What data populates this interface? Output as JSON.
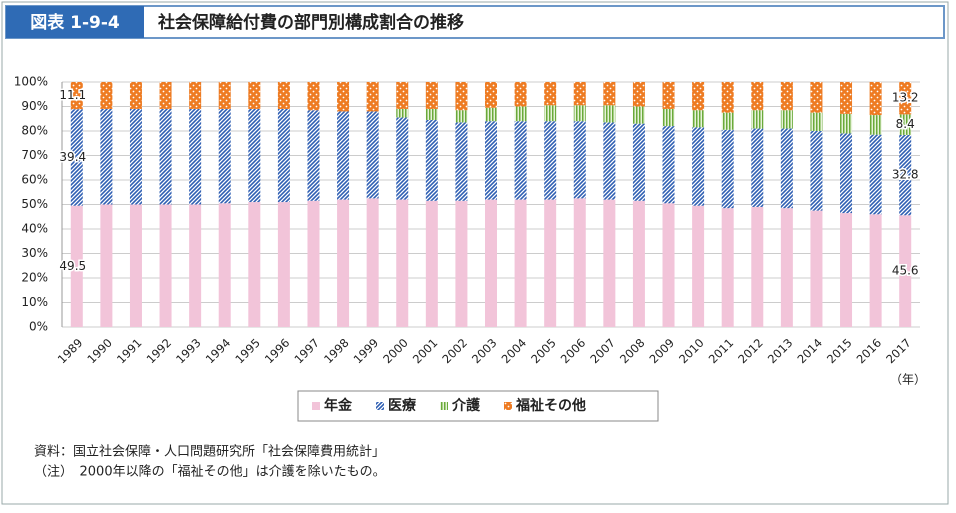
{
  "figure_number": "図表 1-9-4",
  "title": "社会保障給付費の部門別構成割合の推移",
  "chart_data": {
    "type": "stacked-bar",
    "categories": [
      "1989",
      "1990",
      "1991",
      "1992",
      "1993",
      "1994",
      "1995",
      "1996",
      "1997",
      "1998",
      "1999",
      "2000",
      "2001",
      "2002",
      "2003",
      "2004",
      "2005",
      "2006",
      "2007",
      "2008",
      "2009",
      "2010",
      "2011",
      "2012",
      "2013",
      "2014",
      "2015",
      "2016",
      "2017"
    ],
    "x_unit": "（年）",
    "series": [
      {
        "name": "年金",
        "color": "#f2c4d9",
        "pattern": "solid",
        "values": [
          49.5,
          50,
          50,
          50,
          50,
          50.5,
          51,
          51,
          51.5,
          52,
          52.5,
          52,
          51.5,
          51.5,
          52,
          52,
          52,
          52.5,
          52,
          51.5,
          50.5,
          49.5,
          48.5,
          49,
          48.5,
          47.5,
          46.5,
          46,
          45.6
        ]
      },
      {
        "name": "医療",
        "color": "#2f5fb3",
        "pattern": "diagonal",
        "values": [
          39.4,
          39,
          39,
          39,
          39,
          38.5,
          38,
          38,
          37,
          36,
          35.5,
          33.5,
          33,
          32,
          32,
          32,
          32,
          31.5,
          31.5,
          31.5,
          31.5,
          32,
          32,
          32,
          32.5,
          32.5,
          32.5,
          32.5,
          32.8
        ]
      },
      {
        "name": "介護",
        "color": "#6aaa3a",
        "pattern": "vertical",
        "values": [
          null,
          null,
          null,
          null,
          null,
          null,
          null,
          null,
          null,
          null,
          null,
          3.5,
          4.5,
          5,
          5.5,
          6,
          6.5,
          6.5,
          7,
          7,
          7,
          7,
          7,
          7.5,
          7.5,
          7.5,
          8,
          8,
          8.4
        ]
      },
      {
        "name": "福祉その他",
        "color": "#ee7b22",
        "pattern": "dots",
        "values": [
          11.1,
          11,
          11,
          11,
          11,
          11,
          11,
          11,
          11.5,
          12,
          12,
          11,
          11,
          11.5,
          10.5,
          10,
          9.5,
          9.5,
          9.5,
          10,
          11,
          11.5,
          12.5,
          11.5,
          11.5,
          12.5,
          13,
          13.5,
          13.2
        ]
      }
    ],
    "ylim": [
      0,
      100
    ],
    "yticks": [
      {
        "value": 0,
        "label": "0%"
      },
      {
        "value": 10,
        "label": "10%"
      },
      {
        "value": 20,
        "label": "20%"
      },
      {
        "value": 30,
        "label": "30%"
      },
      {
        "value": 40,
        "label": "40%"
      },
      {
        "value": 50,
        "label": "50%"
      },
      {
        "value": 60,
        "label": "60%"
      },
      {
        "value": 70,
        "label": "70%"
      },
      {
        "value": 80,
        "label": "80%"
      },
      {
        "value": 90,
        "label": "90%"
      },
      {
        "value": 100,
        "label": "100%"
      }
    ],
    "grid": true
  },
  "notes": [
    "資料：国立社会保障・人口問題研究所「社会保障費用統計」",
    "（注）　2000年以降の「福祉その他」は介護を除いたもの。"
  ]
}
